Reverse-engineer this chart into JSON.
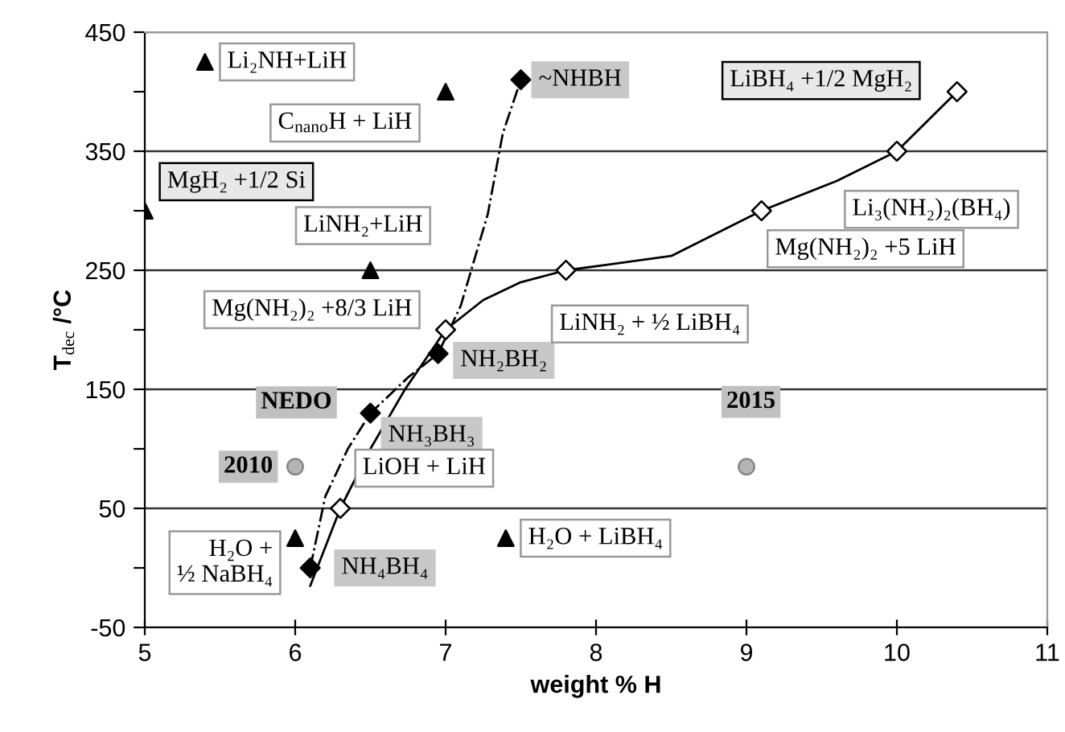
{
  "chart_data": {
    "type": "scatter",
    "xlabel": "weight % H",
    "ylabel": "T$_{dec}$ /°C",
    "xlim": [
      5,
      11
    ],
    "xticks": [
      5,
      6,
      7,
      8,
      9,
      10,
      11
    ],
    "ylim": [
      -50,
      450
    ],
    "yticks": [
      -50,
      {
        "value": 0,
        "label": null
      },
      50,
      {
        "value": 100,
        "label": null
      },
      150,
      {
        "value": 200,
        "label": null
      },
      250,
      {
        "value": 300,
        "label": null
      },
      350,
      {
        "value": 400,
        "label": null
      },
      450
    ],
    "grid": "y",
    "series": [
      {
        "type": "line",
        "color": "#000000",
        "line_style": "solid",
        "marker": "none",
        "x": [
          6.1,
          6.3,
          6.5,
          6.73,
          7.0,
          7.25,
          7.5,
          7.8,
          8.5,
          9.1,
          9.6,
          10.0,
          10.4
        ],
        "values": [
          -15,
          50,
          100,
          150,
          200,
          225,
          240,
          250,
          262,
          300,
          325,
          350,
          400
        ]
      },
      {
        "type": "line",
        "color": "#000000",
        "line_style": "dashed",
        "marker": "none",
        "x": [
          6.1,
          6.2,
          6.35,
          6.5,
          6.75,
          6.95,
          7.1,
          7.28,
          7.38,
          7.5
        ],
        "values": [
          0,
          60,
          100,
          130,
          160,
          180,
          220,
          297,
          365,
          410
        ]
      },
      {
        "color": "#000000",
        "marker": "triangle",
        "x": [
          5.4,
          7.0,
          5.0,
          6.5,
          6.0,
          7.4
        ],
        "values": [
          425,
          400,
          300,
          250,
          25,
          25
        ]
      },
      {
        "color": "#000000",
        "marker": "diamond",
        "x": [
          6.1,
          6.5,
          6.95,
          7.5
        ],
        "values": [
          0,
          130,
          180,
          410
        ]
      },
      {
        "color": "#ffffff",
        "marker": "diamond",
        "x": [
          6.3,
          7.0,
          7.8,
          9.1,
          10.0,
          10.4
        ],
        "values": [
          50,
          200,
          250,
          300,
          350,
          400
        ]
      },
      {
        "color": "#b4b4b4",
        "marker": "circle",
        "x": [
          6.0,
          9.0
        ],
        "values": [
          85,
          85
        ]
      }
    ],
    "annotations": [
      {
        "text": "Li₂NH+LiH",
        "x": 5.4,
        "y": 425
      },
      {
        "text": "C$_{nano}$H + LiH",
        "x": 7.0,
        "y": 400
      },
      {
        "text": "~NHBH",
        "x": 7.5,
        "y": 410
      },
      {
        "text": "MgH₂ +1/2 Si",
        "x": 5.0,
        "y": 300
      },
      {
        "text": "LiNH₂+LiH",
        "x": 6.5,
        "y": 250
      },
      {
        "text": "Mg(NH₂)₂ +8/3 LiH",
        "x": 7.0,
        "y": 200
      },
      {
        "text": "NH₂BH₂",
        "x": 6.95,
        "y": 180
      },
      {
        "text": "LiNH₂ + ½ LiBH₄",
        "x": 7.8,
        "y": 250
      },
      {
        "text": "LiBH₄ +1/2 MgH₂",
        "x": 10.4,
        "y": 400
      },
      {
        "text": "Li₃(NH₂)₂(BH₄)",
        "x": 10.0,
        "y": 350
      },
      {
        "text": "Mg(NH₂)₂ +5 LiH",
        "x": 9.1,
        "y": 300
      },
      {
        "text": "NH₃BH₃",
        "x": 6.5,
        "y": 130
      },
      {
        "text": "LiOH + LiH",
        "x": 6.3,
        "y": 50
      },
      {
        "text": "H₂O +\n½ NaBH₄",
        "x": 6.0,
        "y": 25
      },
      {
        "text": "NH₄BH₄",
        "x": 6.1,
        "y": 0
      },
      {
        "text": "H₂O + LiBH₄",
        "x": 7.4,
        "y": 25
      },
      {
        "text": "2010",
        "x": 6.0,
        "y": 85
      },
      {
        "text": "2015",
        "x": 9.0,
        "y": 85
      },
      "NEDO"
    ]
  }
}
